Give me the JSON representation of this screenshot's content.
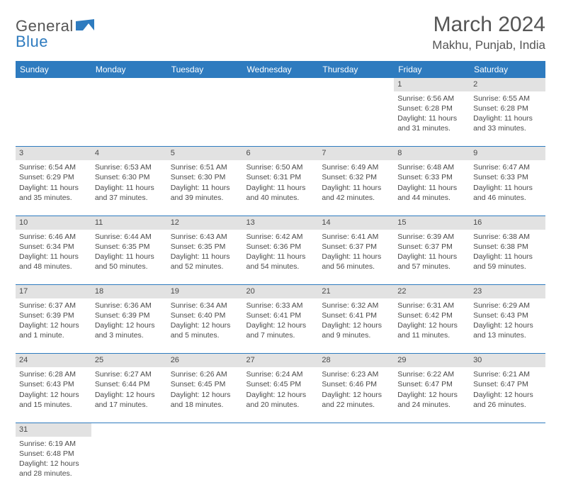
{
  "logo": {
    "text1": "General",
    "text2": "Blue",
    "shape_color": "#2e7bbf"
  },
  "title": "March 2024",
  "location": "Makhu, Punjab, India",
  "colors": {
    "header_bg": "#2e7bbf",
    "header_fg": "#ffffff",
    "daynum_bg": "#e2e2e2",
    "text": "#4a4a4a",
    "rule": "#2e7bbf"
  },
  "font": {
    "family": "Arial",
    "title_size": 30,
    "location_size": 17,
    "head_size": 12,
    "cell_size": 10.5
  },
  "weekdays": [
    "Sunday",
    "Monday",
    "Tuesday",
    "Wednesday",
    "Thursday",
    "Friday",
    "Saturday"
  ],
  "weeks": [
    {
      "nums": [
        "",
        "",
        "",
        "",
        "",
        "1",
        "2"
      ],
      "cells": [
        null,
        null,
        null,
        null,
        null,
        {
          "sunrise": "Sunrise: 6:56 AM",
          "sunset": "Sunset: 6:28 PM",
          "day1": "Daylight: 11 hours",
          "day2": "and 31 minutes."
        },
        {
          "sunrise": "Sunrise: 6:55 AM",
          "sunset": "Sunset: 6:28 PM",
          "day1": "Daylight: 11 hours",
          "day2": "and 33 minutes."
        }
      ]
    },
    {
      "nums": [
        "3",
        "4",
        "5",
        "6",
        "7",
        "8",
        "9"
      ],
      "cells": [
        {
          "sunrise": "Sunrise: 6:54 AM",
          "sunset": "Sunset: 6:29 PM",
          "day1": "Daylight: 11 hours",
          "day2": "and 35 minutes."
        },
        {
          "sunrise": "Sunrise: 6:53 AM",
          "sunset": "Sunset: 6:30 PM",
          "day1": "Daylight: 11 hours",
          "day2": "and 37 minutes."
        },
        {
          "sunrise": "Sunrise: 6:51 AM",
          "sunset": "Sunset: 6:30 PM",
          "day1": "Daylight: 11 hours",
          "day2": "and 39 minutes."
        },
        {
          "sunrise": "Sunrise: 6:50 AM",
          "sunset": "Sunset: 6:31 PM",
          "day1": "Daylight: 11 hours",
          "day2": "and 40 minutes."
        },
        {
          "sunrise": "Sunrise: 6:49 AM",
          "sunset": "Sunset: 6:32 PM",
          "day1": "Daylight: 11 hours",
          "day2": "and 42 minutes."
        },
        {
          "sunrise": "Sunrise: 6:48 AM",
          "sunset": "Sunset: 6:33 PM",
          "day1": "Daylight: 11 hours",
          "day2": "and 44 minutes."
        },
        {
          "sunrise": "Sunrise: 6:47 AM",
          "sunset": "Sunset: 6:33 PM",
          "day1": "Daylight: 11 hours",
          "day2": "and 46 minutes."
        }
      ]
    },
    {
      "nums": [
        "10",
        "11",
        "12",
        "13",
        "14",
        "15",
        "16"
      ],
      "cells": [
        {
          "sunrise": "Sunrise: 6:46 AM",
          "sunset": "Sunset: 6:34 PM",
          "day1": "Daylight: 11 hours",
          "day2": "and 48 minutes."
        },
        {
          "sunrise": "Sunrise: 6:44 AM",
          "sunset": "Sunset: 6:35 PM",
          "day1": "Daylight: 11 hours",
          "day2": "and 50 minutes."
        },
        {
          "sunrise": "Sunrise: 6:43 AM",
          "sunset": "Sunset: 6:35 PM",
          "day1": "Daylight: 11 hours",
          "day2": "and 52 minutes."
        },
        {
          "sunrise": "Sunrise: 6:42 AM",
          "sunset": "Sunset: 6:36 PM",
          "day1": "Daylight: 11 hours",
          "day2": "and 54 minutes."
        },
        {
          "sunrise": "Sunrise: 6:41 AM",
          "sunset": "Sunset: 6:37 PM",
          "day1": "Daylight: 11 hours",
          "day2": "and 56 minutes."
        },
        {
          "sunrise": "Sunrise: 6:39 AM",
          "sunset": "Sunset: 6:37 PM",
          "day1": "Daylight: 11 hours",
          "day2": "and 57 minutes."
        },
        {
          "sunrise": "Sunrise: 6:38 AM",
          "sunset": "Sunset: 6:38 PM",
          "day1": "Daylight: 11 hours",
          "day2": "and 59 minutes."
        }
      ]
    },
    {
      "nums": [
        "17",
        "18",
        "19",
        "20",
        "21",
        "22",
        "23"
      ],
      "cells": [
        {
          "sunrise": "Sunrise: 6:37 AM",
          "sunset": "Sunset: 6:39 PM",
          "day1": "Daylight: 12 hours",
          "day2": "and 1 minute."
        },
        {
          "sunrise": "Sunrise: 6:36 AM",
          "sunset": "Sunset: 6:39 PM",
          "day1": "Daylight: 12 hours",
          "day2": "and 3 minutes."
        },
        {
          "sunrise": "Sunrise: 6:34 AM",
          "sunset": "Sunset: 6:40 PM",
          "day1": "Daylight: 12 hours",
          "day2": "and 5 minutes."
        },
        {
          "sunrise": "Sunrise: 6:33 AM",
          "sunset": "Sunset: 6:41 PM",
          "day1": "Daylight: 12 hours",
          "day2": "and 7 minutes."
        },
        {
          "sunrise": "Sunrise: 6:32 AM",
          "sunset": "Sunset: 6:41 PM",
          "day1": "Daylight: 12 hours",
          "day2": "and 9 minutes."
        },
        {
          "sunrise": "Sunrise: 6:31 AM",
          "sunset": "Sunset: 6:42 PM",
          "day1": "Daylight: 12 hours",
          "day2": "and 11 minutes."
        },
        {
          "sunrise": "Sunrise: 6:29 AM",
          "sunset": "Sunset: 6:43 PM",
          "day1": "Daylight: 12 hours",
          "day2": "and 13 minutes."
        }
      ]
    },
    {
      "nums": [
        "24",
        "25",
        "26",
        "27",
        "28",
        "29",
        "30"
      ],
      "cells": [
        {
          "sunrise": "Sunrise: 6:28 AM",
          "sunset": "Sunset: 6:43 PM",
          "day1": "Daylight: 12 hours",
          "day2": "and 15 minutes."
        },
        {
          "sunrise": "Sunrise: 6:27 AM",
          "sunset": "Sunset: 6:44 PM",
          "day1": "Daylight: 12 hours",
          "day2": "and 17 minutes."
        },
        {
          "sunrise": "Sunrise: 6:26 AM",
          "sunset": "Sunset: 6:45 PM",
          "day1": "Daylight: 12 hours",
          "day2": "and 18 minutes."
        },
        {
          "sunrise": "Sunrise: 6:24 AM",
          "sunset": "Sunset: 6:45 PM",
          "day1": "Daylight: 12 hours",
          "day2": "and 20 minutes."
        },
        {
          "sunrise": "Sunrise: 6:23 AM",
          "sunset": "Sunset: 6:46 PM",
          "day1": "Daylight: 12 hours",
          "day2": "and 22 minutes."
        },
        {
          "sunrise": "Sunrise: 6:22 AM",
          "sunset": "Sunset: 6:47 PM",
          "day1": "Daylight: 12 hours",
          "day2": "and 24 minutes."
        },
        {
          "sunrise": "Sunrise: 6:21 AM",
          "sunset": "Sunset: 6:47 PM",
          "day1": "Daylight: 12 hours",
          "day2": "and 26 minutes."
        }
      ]
    },
    {
      "nums": [
        "31",
        "",
        "",
        "",
        "",
        "",
        ""
      ],
      "cells": [
        {
          "sunrise": "Sunrise: 6:19 AM",
          "sunset": "Sunset: 6:48 PM",
          "day1": "Daylight: 12 hours",
          "day2": "and 28 minutes."
        },
        null,
        null,
        null,
        null,
        null,
        null
      ]
    }
  ]
}
